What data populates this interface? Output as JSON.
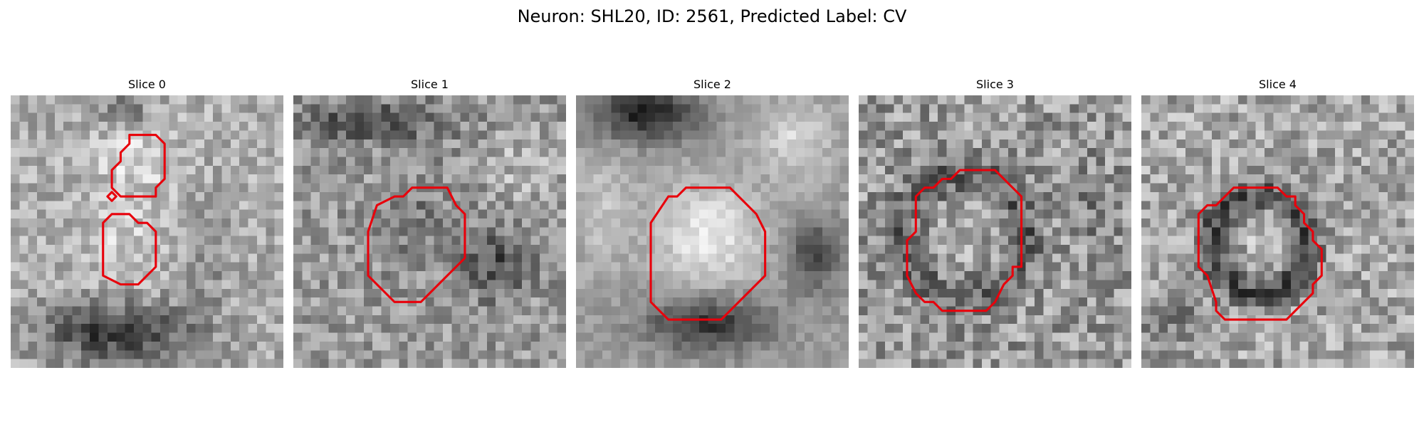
{
  "figure": {
    "title": "Neuron: SHL20, ID: 2561, Predicted Label: CV",
    "contour_color": "#e8000b"
  },
  "panels": [
    {
      "title": "Slice 0",
      "contours": [
        [
          [
            13.5,
            4.5
          ],
          [
            16.5,
            4.5
          ],
          [
            17.5,
            5.5
          ],
          [
            17.5,
            9.5
          ],
          [
            16.5,
            10.5
          ],
          [
            16.5,
            11.5
          ],
          [
            15.5,
            11.5
          ],
          [
            12.5,
            11.5
          ],
          [
            11.5,
            10.5
          ],
          [
            11.5,
            8.5
          ],
          [
            12.5,
            7.5
          ],
          [
            12.5,
            6.5
          ],
          [
            13.5,
            5.5
          ]
        ],
        [
          [
            11,
            11.5
          ],
          [
            11.5,
            11
          ],
          [
            12,
            11.5
          ],
          [
            11.5,
            12
          ]
        ],
        [
          [
            11.5,
            13.5
          ],
          [
            13.5,
            13.5
          ],
          [
            14.5,
            14.5
          ],
          [
            15.5,
            14.5
          ],
          [
            16.5,
            15.5
          ],
          [
            16.5,
            19.5
          ],
          [
            15.5,
            20.5
          ],
          [
            14.5,
            21.5
          ],
          [
            12.5,
            21.5
          ],
          [
            10.5,
            20.5
          ],
          [
            10.5,
            14.5
          ]
        ]
      ]
    },
    {
      "title": "Slice 1",
      "contours": [
        [
          [
            13.5,
            10.5
          ],
          [
            17.5,
            10.5
          ],
          [
            18.5,
            12.5
          ],
          [
            19.5,
            13.5
          ],
          [
            19.5,
            18.5
          ],
          [
            18.5,
            19.5
          ],
          [
            17.5,
            20.5
          ],
          [
            16.5,
            21.5
          ],
          [
            15.5,
            22.5
          ],
          [
            14.5,
            23.5
          ],
          [
            11.5,
            23.5
          ],
          [
            8.5,
            20.5
          ],
          [
            8.5,
            15.5
          ],
          [
            9.5,
            12.5
          ],
          [
            11.5,
            11.5
          ],
          [
            12.5,
            11.5
          ]
        ]
      ]
    },
    {
      "title": "Slice 2",
      "contours": [
        [
          [
            12.5,
            10.5
          ],
          [
            17.5,
            10.5
          ],
          [
            20.5,
            13.5
          ],
          [
            21.5,
            15.5
          ],
          [
            21.5,
            20.5
          ],
          [
            20.5,
            21.5
          ],
          [
            19.5,
            22.5
          ],
          [
            17.5,
            24.5
          ],
          [
            16.5,
            25.5
          ],
          [
            10.5,
            25.5
          ],
          [
            9.5,
            24.5
          ],
          [
            8.5,
            23.5
          ],
          [
            8.5,
            14.5
          ],
          [
            10.5,
            11.5
          ],
          [
            11.5,
            11.5
          ]
        ]
      ]
    },
    {
      "title": "Slice 3",
      "contours": [
        [
          [
            11.5,
            8.5
          ],
          [
            15.5,
            8.5
          ],
          [
            16.5,
            9.5
          ],
          [
            18.5,
            11.5
          ],
          [
            18.5,
            19.5
          ],
          [
            17.5,
            19.5
          ],
          [
            17.5,
            20.5
          ],
          [
            16.5,
            21.5
          ],
          [
            15.5,
            23.5
          ],
          [
            14.5,
            24.5
          ],
          [
            9.5,
            24.5
          ],
          [
            8.5,
            23.5
          ],
          [
            7.5,
            23.5
          ],
          [
            6.5,
            22.5
          ],
          [
            5.5,
            20.5
          ],
          [
            5.5,
            18.5
          ],
          [
            5.5,
            16.5
          ],
          [
            6.5,
            15.5
          ],
          [
            6.5,
            11.5
          ],
          [
            7.5,
            10.5
          ],
          [
            8.5,
            10.5
          ],
          [
            9.5,
            9.5
          ],
          [
            10.5,
            9.5
          ]
        ]
      ]
    },
    {
      "title": "Slice 4",
      "contours": [
        [
          [
            10.5,
            10.5
          ],
          [
            15.5,
            10.5
          ],
          [
            16.5,
            11.5
          ],
          [
            17.5,
            11.5
          ],
          [
            17.5,
            12.5
          ],
          [
            18.5,
            13.5
          ],
          [
            18.5,
            14.5
          ],
          [
            19.5,
            15.5
          ],
          [
            19.5,
            16.5
          ],
          [
            20.5,
            17.5
          ],
          [
            20.5,
            20.5
          ],
          [
            19.5,
            21.5
          ],
          [
            19.5,
            22.5
          ],
          [
            18.5,
            23.5
          ],
          [
            17.5,
            24.5
          ],
          [
            16.5,
            25.5
          ],
          [
            9.5,
            25.5
          ],
          [
            8.5,
            24.5
          ],
          [
            8.5,
            23.5
          ],
          [
            7.5,
            20.5
          ],
          [
            6.5,
            19.5
          ],
          [
            6.5,
            13.5
          ],
          [
            7.5,
            12.5
          ],
          [
            8.5,
            12.5
          ],
          [
            9.5,
            11.5
          ]
        ]
      ]
    }
  ]
}
